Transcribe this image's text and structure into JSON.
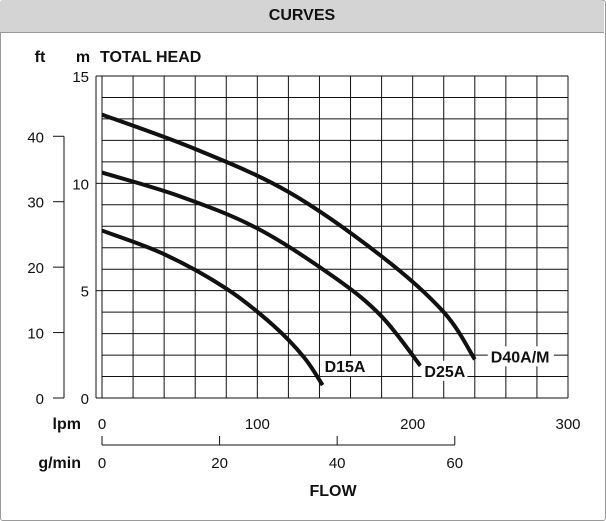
{
  "header": {
    "title": "CURVES"
  },
  "chart_data": {
    "type": "line",
    "title": "CURVES",
    "ylabel": "TOTAL HEAD",
    "xlabel": "FLOW",
    "units": {
      "y_primary": "m",
      "y_secondary": "ft",
      "x_primary": "lpm",
      "x_secondary": "g/min"
    },
    "y_m_ticks": [
      "0",
      "5",
      "10",
      "15"
    ],
    "y_ft_ticks": [
      "0",
      "10",
      "20",
      "30",
      "40"
    ],
    "x_lpm_ticks": [
      "0",
      "100",
      "200",
      "300"
    ],
    "x_gmin_ticks": [
      "0",
      "20",
      "40",
      "60"
    ],
    "xlim": [
      0,
      300
    ],
    "ylim": [
      0,
      15
    ],
    "grid": true,
    "series": [
      {
        "name": "D15A",
        "x": [
          0,
          40,
          80,
          110,
          130,
          142
        ],
        "y": [
          7.8,
          6.7,
          5.1,
          3.4,
          1.9,
          0.6
        ]
      },
      {
        "name": "D25A",
        "x": [
          0,
          50,
          100,
          150,
          180,
          205
        ],
        "y": [
          10.5,
          9.4,
          7.9,
          5.6,
          3.8,
          1.5
        ]
      },
      {
        "name": "D40A/M",
        "x": [
          0,
          60,
          120,
          180,
          220,
          240
        ],
        "y": [
          13.2,
          11.6,
          9.6,
          6.6,
          4.0,
          1.8
        ]
      }
    ]
  }
}
